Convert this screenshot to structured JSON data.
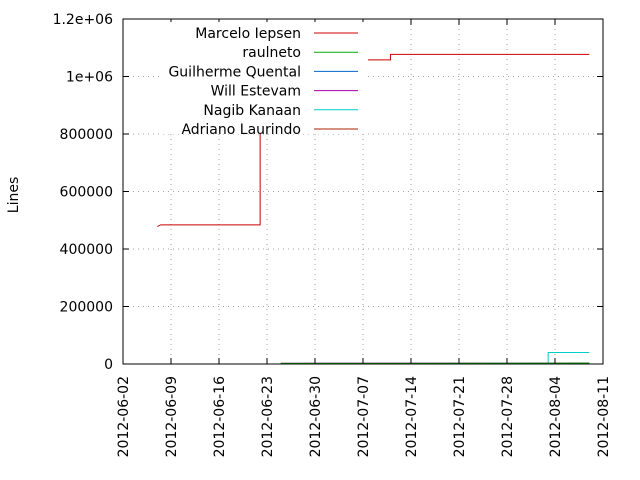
{
  "chart_data": {
    "type": "line",
    "title": "",
    "xlabel": "",
    "ylabel": "Lines",
    "xlim": [
      "2012-06-02",
      "2012-08-11"
    ],
    "ylim": [
      0,
      1200000
    ],
    "x_ticks": [
      "2012-06-02",
      "2012-06-09",
      "2012-06-16",
      "2012-06-23",
      "2012-06-30",
      "2012-07-07",
      "2012-07-14",
      "2012-07-21",
      "2012-07-28",
      "2012-08-04",
      "2012-08-11"
    ],
    "y_ticks": [
      0,
      200000,
      400000,
      600000,
      800000,
      1000000,
      1200000
    ],
    "y_tick_labels": [
      "0",
      "200000",
      "400000",
      "600000",
      "800000",
      "1e+06",
      "1.2e+06"
    ],
    "grid": true,
    "legend_position": "top-left",
    "step": true,
    "series": [
      {
        "name": "Marcelo Iepsen",
        "color": "#cc0000",
        "points": [
          [
            "2012-06-07",
            478000
          ],
          [
            "2012-06-07T12:00",
            484000
          ],
          [
            "2012-06-22",
            484000
          ],
          [
            "2012-06-22",
            1000000
          ],
          [
            "2012-06-25",
            1000000
          ],
          [
            "2012-06-25",
            1058000
          ],
          [
            "2012-07-11",
            1058000
          ],
          [
            "2012-07-11",
            1077000
          ],
          [
            "2012-08-09",
            1077000
          ]
        ]
      },
      {
        "name": "raulneto",
        "color": "#00aa00",
        "points": [
          [
            "2012-06-25",
            2000
          ],
          [
            "2012-08-09",
            3000
          ]
        ]
      },
      {
        "name": "Guilherme Quental",
        "color": "#0066cc",
        "points": [
          [
            "2012-06-25",
            1000
          ],
          [
            "2012-08-09",
            1500
          ]
        ]
      },
      {
        "name": "Will Estevam",
        "color": "#aa00aa",
        "points": [
          [
            "2012-06-25",
            2500
          ],
          [
            "2012-08-09",
            3500
          ]
        ]
      },
      {
        "name": "Nagib Kanaan",
        "color": "#00cccc",
        "points": [
          [
            "2012-08-03",
            1000
          ],
          [
            "2012-08-03",
            40000
          ],
          [
            "2012-08-09",
            40000
          ]
        ]
      },
      {
        "name": "Adriano Laurindo",
        "color": "#aa2200",
        "points": [
          [
            "2012-06-25",
            500
          ],
          [
            "2012-08-09",
            1000
          ]
        ]
      }
    ]
  }
}
